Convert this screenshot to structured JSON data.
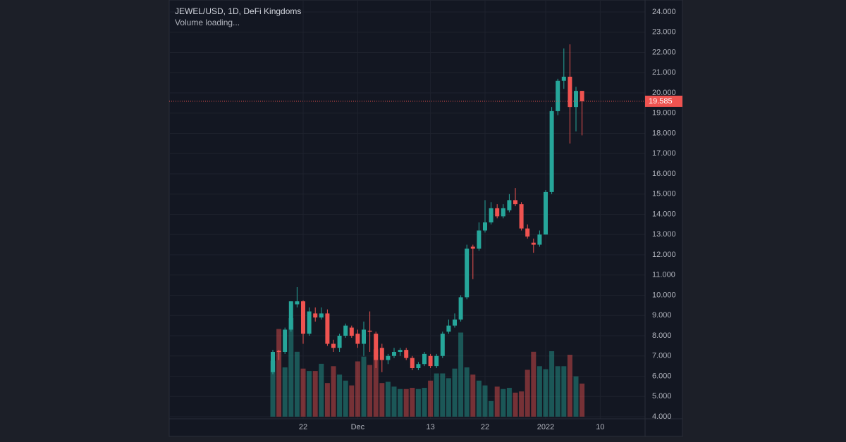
{
  "chart_data": {
    "type": "candlestick",
    "title": "JEWEL/USD, 1D, DeFi Kingdoms",
    "subtitle": "Volume loading...",
    "categories": [
      null,
      null,
      null,
      null,
      null,
      "22",
      null,
      null,
      null,
      null,
      null,
      null,
      null,
      null,
      "Dec",
      null,
      null,
      null,
      null,
      null,
      null,
      null,
      null,
      null,
      null,
      null,
      "13",
      null,
      null,
      null,
      null,
      null,
      null,
      null,
      null,
      "22",
      null,
      null,
      null,
      null,
      null,
      null,
      null,
      null,
      null,
      "2022",
      null,
      null,
      null,
      null,
      null,
      null,
      null,
      null,
      "10"
    ],
    "open": [
      6.2,
      7.25,
      7.2,
      8.3,
      9.55,
      9.7,
      8.1,
      9.1,
      8.9,
      9.1,
      7.6,
      7.4,
      8.0,
      8.4,
      8.1,
      7.6,
      8.25,
      8.1,
      7.4,
      6.8,
      7.0,
      7.2,
      7.3,
      6.9,
      6.4,
      6.6,
      7.0,
      6.5,
      7.0,
      8.2,
      8.5,
      8.8,
      9.9,
      12.4,
      12.3,
      13.2,
      13.6,
      14.3,
      13.9,
      14.2,
      14.7,
      14.5,
      13.3,
      12.6,
      12.5,
      13.0,
      15.1,
      19.1,
      20.6,
      20.8,
      19.3,
      20.1,
      null,
      null,
      null
    ],
    "high": [
      7.3,
      7.3,
      8.4,
      9.7,
      10.4,
      9.75,
      9.4,
      9.4,
      9.4,
      9.3,
      7.8,
      8.1,
      8.6,
      8.5,
      8.3,
      8.7,
      9.2,
      8.2,
      7.6,
      7.1,
      7.4,
      7.4,
      7.4,
      7.0,
      6.7,
      7.2,
      7.1,
      7.1,
      8.2,
      8.8,
      9.1,
      10.0,
      12.5,
      12.5,
      13.6,
      14.7,
      14.6,
      14.5,
      14.5,
      15.0,
      15.3,
      14.6,
      13.5,
      12.8,
      13.2,
      15.2,
      19.3,
      20.7,
      22.2,
      22.4,
      20.3,
      20.1,
      null,
      null,
      null
    ],
    "low": [
      6.1,
      6.8,
      7.1,
      8.2,
      9.4,
      7.6,
      8.0,
      8.7,
      8.8,
      7.5,
      7.2,
      7.2,
      7.9,
      7.9,
      7.4,
      7.0,
      7.2,
      6.4,
      6.2,
      6.6,
      6.9,
      7.0,
      6.8,
      6.3,
      6.3,
      6.5,
      6.4,
      6.4,
      6.9,
      8.1,
      8.4,
      8.7,
      9.8,
      10.8,
      12.2,
      13.1,
      13.5,
      13.8,
      13.8,
      14.1,
      14.4,
      13.2,
      12.8,
      12.1,
      12.4,
      13.0,
      15.0,
      18.9,
      20.2,
      17.5,
      18.1,
      17.9,
      null,
      null,
      null
    ],
    "close": [
      7.2,
      7.2,
      8.3,
      9.7,
      9.7,
      8.1,
      9.2,
      8.9,
      9.1,
      7.6,
      7.4,
      8.0,
      8.5,
      8.0,
      7.6,
      8.3,
      8.2,
      6.8,
      6.8,
      7.0,
      7.2,
      7.3,
      6.9,
      6.4,
      6.6,
      7.1,
      6.5,
      7.0,
      8.1,
      8.5,
      8.8,
      9.9,
      12.3,
      12.3,
      13.2,
      13.6,
      14.3,
      13.9,
      14.3,
      14.7,
      14.5,
      13.3,
      12.9,
      12.5,
      13.0,
      15.1,
      19.1,
      20.6,
      20.8,
      19.3,
      20.1,
      19.585,
      null,
      null,
      null
    ],
    "volume": [
      93,
      146,
      82,
      164,
      108,
      80,
      76,
      76,
      88,
      56,
      84,
      70,
      60,
      52,
      92,
      100,
      86,
      112,
      56,
      58,
      50,
      46,
      46,
      48,
      46,
      48,
      60,
      72,
      72,
      64,
      80,
      140,
      82,
      70,
      60,
      52,
      26,
      50,
      46,
      48,
      40,
      42,
      78,
      108,
      84,
      79,
      109,
      84,
      84,
      103,
      67,
      55,
      null,
      null,
      null
    ],
    "up_color": "#26a69a",
    "down_color": "#ef5350",
    "ylim": [
      4,
      24
    ],
    "yticks": [
      {
        "value": 4,
        "label": "4.000"
      },
      {
        "value": 5,
        "label": "5.000"
      },
      {
        "value": 6,
        "label": "6.000"
      },
      {
        "value": 7,
        "label": "7.000"
      },
      {
        "value": 8,
        "label": "8.000"
      },
      {
        "value": 9,
        "label": "9.000"
      },
      {
        "value": 10,
        "label": "10.000"
      },
      {
        "value": 11,
        "label": "11.000"
      },
      {
        "value": 12,
        "label": "12.000"
      },
      {
        "value": 13,
        "label": "13.000"
      },
      {
        "value": 14,
        "label": "14.000"
      },
      {
        "value": 15,
        "label": "15.000"
      },
      {
        "value": 16,
        "label": "16.000"
      },
      {
        "value": 17,
        "label": "17.000"
      },
      {
        "value": 18,
        "label": "18.000"
      },
      {
        "value": 19,
        "label": "19.000"
      },
      {
        "value": 20,
        "label": "20.000"
      },
      {
        "value": 21,
        "label": "21.000"
      },
      {
        "value": 22,
        "label": "22.000"
      },
      {
        "value": 23,
        "label": "23.000"
      },
      {
        "value": 24,
        "label": "24.000"
      }
    ],
    "grid": true
  }
}
